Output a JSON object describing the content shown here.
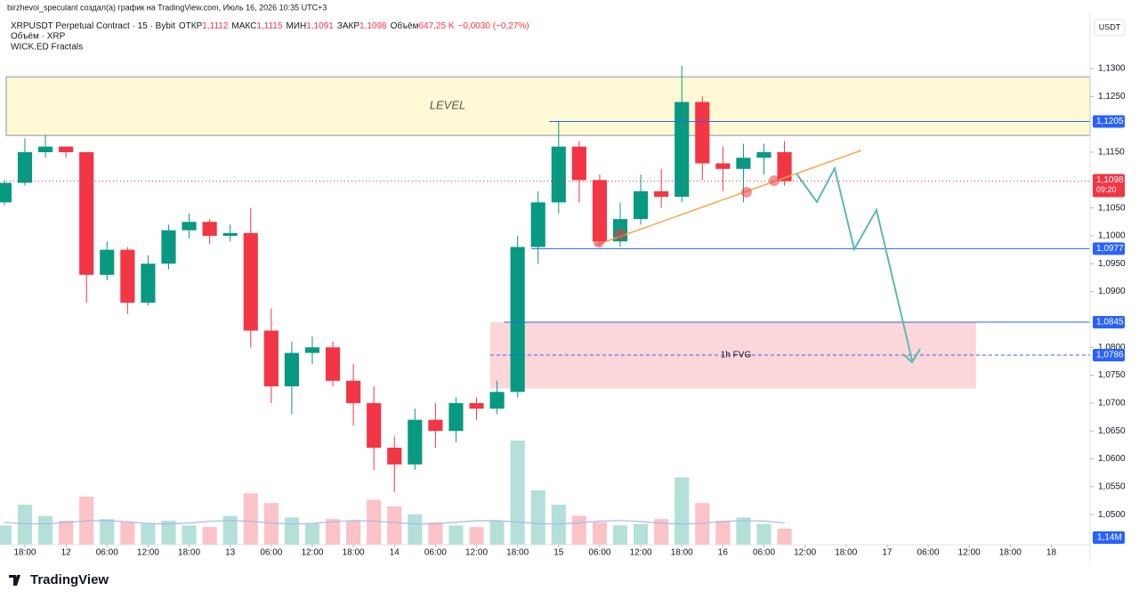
{
  "header": {
    "credit": "birzhevoi_speculant создал(а) график на TradingView.com, Июль 16, 2026 10:35 UTC+3",
    "symbol": "XRPUSDT Perpetual Contract · 15 · Bybit",
    "stats": [
      [
        "ОТКР",
        "1,1112"
      ],
      [
        "МАКС",
        "1,1115"
      ],
      [
        "МИН",
        "1,1091"
      ],
      [
        "ЗАКР",
        "1,1098"
      ],
      [
        "Объём",
        "647,25 K"
      ]
    ],
    "change": "−0,0030 (−0,27%)",
    "indicator1": "Объём · XRP",
    "indicator2": "WICK.ED Fractals"
  },
  "chart_data": {
    "type": "candlestick",
    "currency": "USDT",
    "x": [
      -3,
      0,
      3,
      6,
      9,
      12,
      15,
      18,
      21,
      24,
      27,
      30,
      33,
      36,
      39,
      42,
      45,
      48,
      51,
      54,
      57,
      60,
      63,
      66,
      69,
      72,
      75,
      78,
      81,
      84,
      87,
      90,
      93,
      96,
      99,
      102,
      105,
      108,
      111
    ],
    "open": [
      1.106,
      1.1095,
      1.115,
      1.116,
      1.115,
      1.093,
      1.0975,
      1.088,
      1.095,
      1.101,
      1.1025,
      1.1,
      1.1005,
      1.083,
      1.073,
      1.079,
      1.08,
      1.074,
      1.07,
      1.062,
      1.059,
      1.067,
      1.065,
      1.07,
      1.069,
      1.072,
      1.098,
      1.106,
      1.116,
      1.11,
      1.099,
      1.103,
      1.108,
      1.107,
      1.124,
      1.113,
      1.112,
      1.114,
      1.115
    ],
    "high": [
      1.11,
      1.1175,
      1.118,
      1.116,
      1.115,
      1.099,
      1.098,
      1.0965,
      1.102,
      1.104,
      1.103,
      1.102,
      1.105,
      1.087,
      1.081,
      1.082,
      1.081,
      1.077,
      1.073,
      1.064,
      1.069,
      1.07,
      1.071,
      1.071,
      1.074,
      1.1,
      1.108,
      1.1205,
      1.117,
      1.111,
      1.106,
      1.111,
      1.112,
      1.1305,
      1.125,
      1.116,
      1.1165,
      1.1165,
      1.117
    ],
    "low": [
      1.1055,
      1.109,
      1.114,
      1.114,
      1.088,
      1.092,
      1.086,
      1.0875,
      1.094,
      1.0995,
      1.0985,
      1.099,
      1.08,
      1.07,
      1.068,
      1.077,
      1.073,
      1.066,
      1.058,
      1.054,
      1.058,
      1.062,
      1.063,
      1.067,
      1.068,
      1.071,
      1.095,
      1.104,
      1.106,
      1.098,
      1.098,
      1.102,
      1.105,
      1.106,
      1.11,
      1.108,
      1.106,
      1.111,
      1.109
    ],
    "close": [
      1.1095,
      1.115,
      1.116,
      1.115,
      1.093,
      1.0975,
      1.088,
      1.095,
      1.101,
      1.1025,
      1.1,
      1.1005,
      1.083,
      1.073,
      1.079,
      1.08,
      1.074,
      1.07,
      1.062,
      1.059,
      1.067,
      1.065,
      1.07,
      1.069,
      1.072,
      1.098,
      1.106,
      1.116,
      1.11,
      1.099,
      1.103,
      1.108,
      1.107,
      1.124,
      1.113,
      1.112,
      1.114,
      1.115,
      1.1098
    ],
    "volume": [
      1.2,
      2.5,
      1.8,
      1.5,
      3.0,
      1.6,
      1.4,
      1.3,
      1.5,
      1.2,
      1.1,
      1.8,
      3.2,
      2.6,
      1.7,
      1.3,
      1.6,
      1.5,
      2.8,
      2.4,
      1.9,
      1.4,
      1.2,
      1.1,
      1.5,
      6.5,
      3.4,
      2.5,
      1.8,
      1.4,
      1.2,
      1.3,
      1.6,
      4.2,
      2.6,
      1.5,
      1.7,
      1.3,
      1.0
    ],
    "volume_ylim": [
      0,
      10
    ],
    "volume_ma_label": "1,14M",
    "up_color": "#089981",
    "down_color": "#f23645",
    "xlim": [
      -2.73,
      155.66
    ],
    "ylim": [
      1.0446,
      1.1399
    ],
    "yticks": [
      {
        "value": 1.13,
        "label": "1,1300"
      },
      {
        "value": 1.125,
        "label": "1,1250"
      },
      {
        "value": 1.115,
        "label": "1,1150"
      },
      {
        "value": 1.105,
        "label": "1,1050"
      },
      {
        "value": 1.1,
        "label": "1,1000"
      },
      {
        "value": 1.095,
        "label": "1,0950"
      },
      {
        "value": 1.09,
        "label": "1,0900"
      },
      {
        "value": 1.08,
        "label": "1,0800"
      },
      {
        "value": 1.075,
        "label": "1,0750"
      },
      {
        "value": 1.07,
        "label": "1,0700"
      },
      {
        "value": 1.065,
        "label": "1,0650"
      },
      {
        "value": 1.06,
        "label": "1,0600"
      },
      {
        "value": 1.055,
        "label": "1,0550"
      },
      {
        "value": 1.05,
        "label": "1,0500"
      }
    ],
    "xticks": [
      {
        "value": 0,
        "label": "18:00"
      },
      {
        "value": 6,
        "label": "12"
      },
      {
        "value": 12,
        "label": "06:00"
      },
      {
        "value": 18,
        "label": "12:00"
      },
      {
        "value": 24,
        "label": "18:00"
      },
      {
        "value": 30,
        "label": "13"
      },
      {
        "value": 36,
        "label": "06:00"
      },
      {
        "value": 42,
        "label": "12:00"
      },
      {
        "value": 48,
        "label": "18:00"
      },
      {
        "value": 54,
        "label": "14"
      },
      {
        "value": 60,
        "label": "06:00"
      },
      {
        "value": 66,
        "label": "12:00"
      },
      {
        "value": 72,
        "label": "18:00"
      },
      {
        "value": 78,
        "label": "15"
      },
      {
        "value": 84,
        "label": "06:00"
      },
      {
        "value": 90,
        "label": "12:00"
      },
      {
        "value": 96,
        "label": "18:00"
      },
      {
        "value": 102,
        "label": "16"
      },
      {
        "value": 108,
        "label": "06:00"
      },
      {
        "value": 114,
        "label": "12:00"
      },
      {
        "value": 120,
        "label": "18:00"
      },
      {
        "value": 126,
        "label": "17"
      },
      {
        "value": 132,
        "label": "06:00"
      },
      {
        "value": 138,
        "label": "12:00"
      },
      {
        "value": 144,
        "label": "18:00"
      },
      {
        "value": 150,
        "label": "18"
      }
    ],
    "level_zone": {
      "label": "LEVEL",
      "low": 1.118,
      "high": 1.1285
    },
    "fvg_zone": {
      "label": "1h FVG",
      "low": 1.0726,
      "high": 1.0845,
      "from": 68,
      "to": 139
    },
    "levels": [
      {
        "value": 1.1205,
        "label": "1,1205",
        "from": 76.6
      },
      {
        "value": 1.0977,
        "label": "1,0977",
        "from": 74
      },
      {
        "value": 1.0845,
        "label": "1,0845",
        "from": 70
      },
      {
        "value": 1.0786,
        "label": "1,0786",
        "from": 68,
        "dashed": true
      }
    ],
    "last_price": {
      "value": 1.1098,
      "label": "1,1098",
      "countdown": "09:20"
    }
  },
  "footer": {
    "brand": "TradingView"
  }
}
